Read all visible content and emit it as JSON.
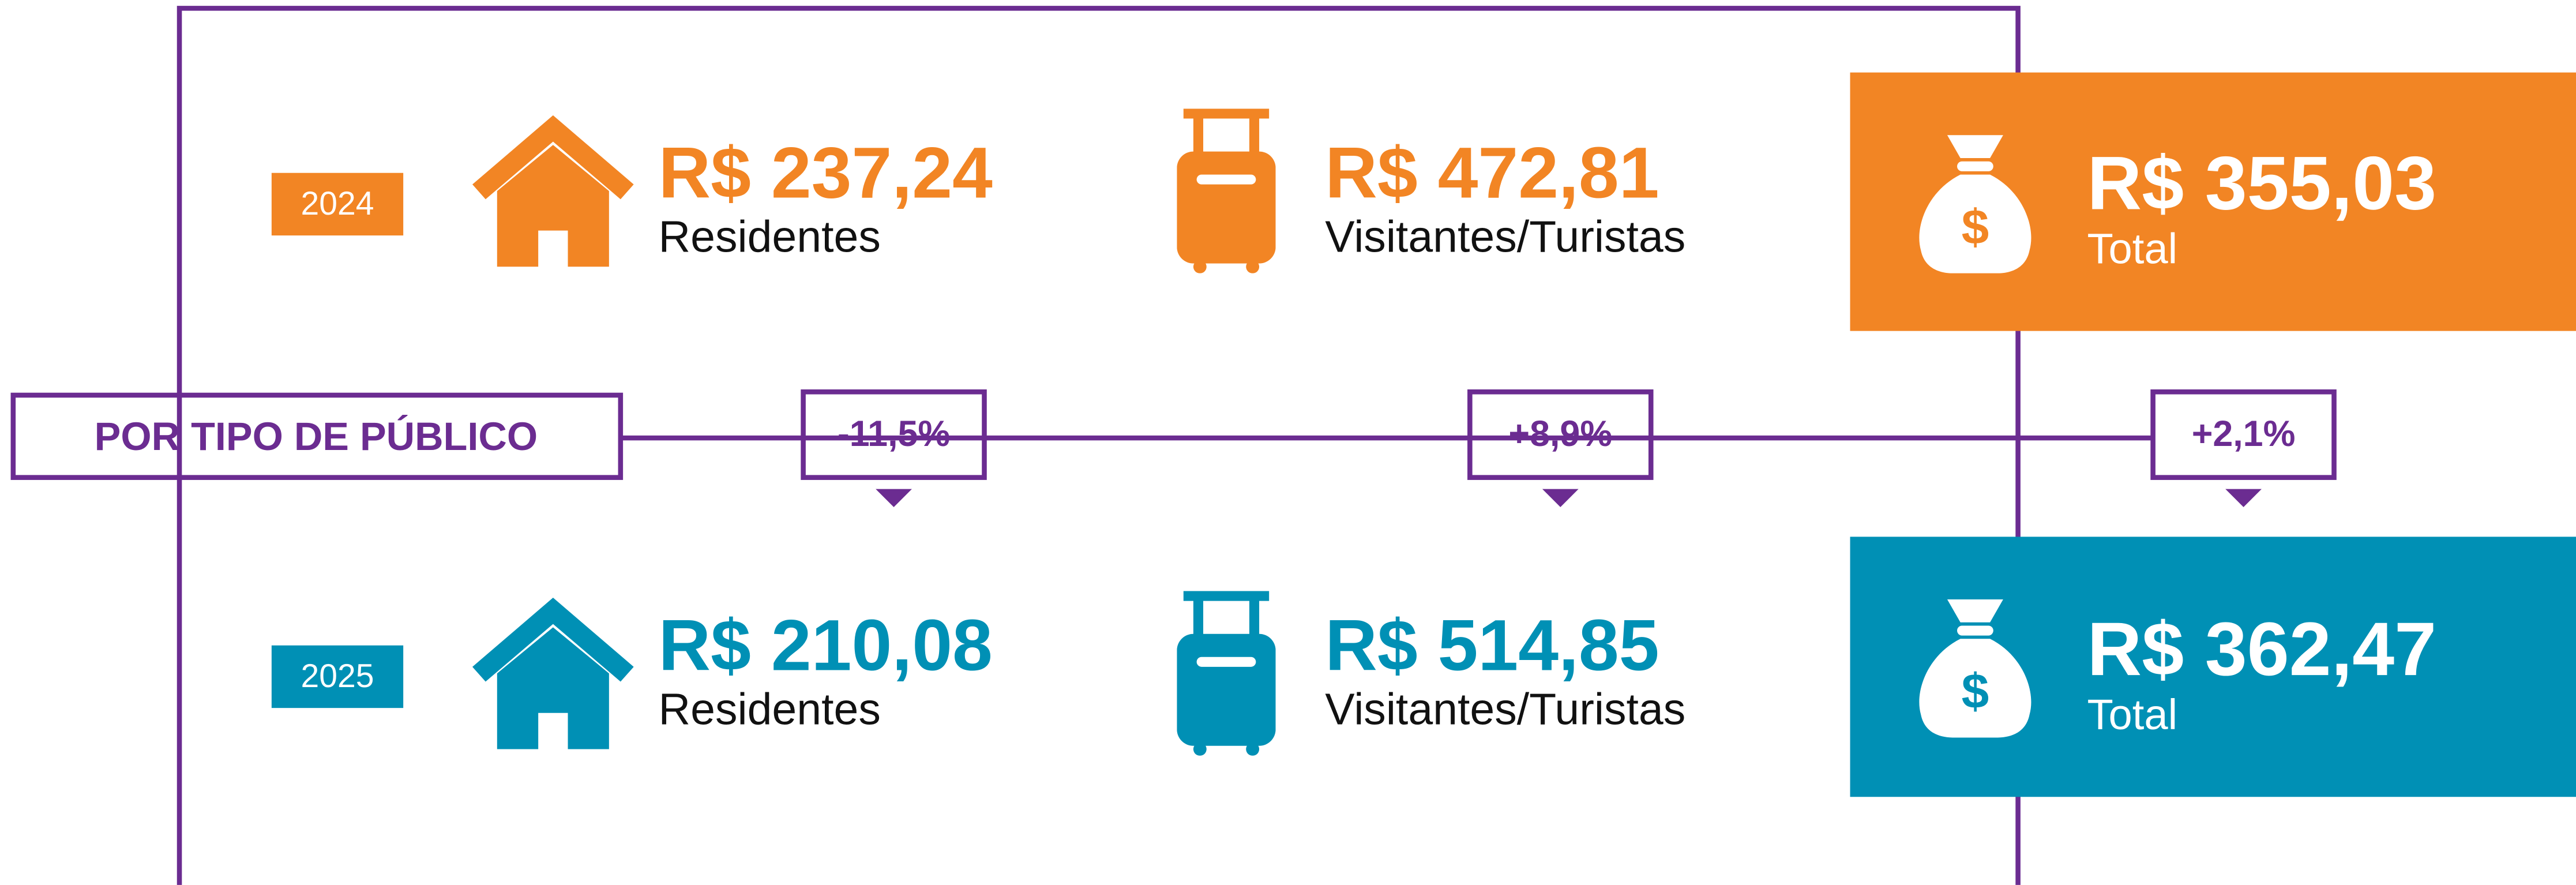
{
  "label": "POR TIPO DE PÚBLICO",
  "changes": [
    "-11,5%",
    "+8,9%",
    "+2,1%"
  ],
  "rows": [
    {
      "year": "2024",
      "color": "#f28524",
      "residentes": {
        "value": "R$ 237,24",
        "label": "Residentes"
      },
      "visitantes": {
        "value": "R$ 472,81",
        "label": "Visitantes/Turistas"
      },
      "total": {
        "value": "R$ 355,03",
        "label": "Total"
      }
    },
    {
      "year": "2025",
      "color": "#0090b5",
      "residentes": {
        "value": "R$ 210,08",
        "label": "Residentes"
      },
      "visitantes": {
        "value": "R$ 514,85",
        "label": "Visitantes/Turistas"
      },
      "total": {
        "value": "R$ 362,47",
        "label": "Total"
      }
    }
  ]
}
